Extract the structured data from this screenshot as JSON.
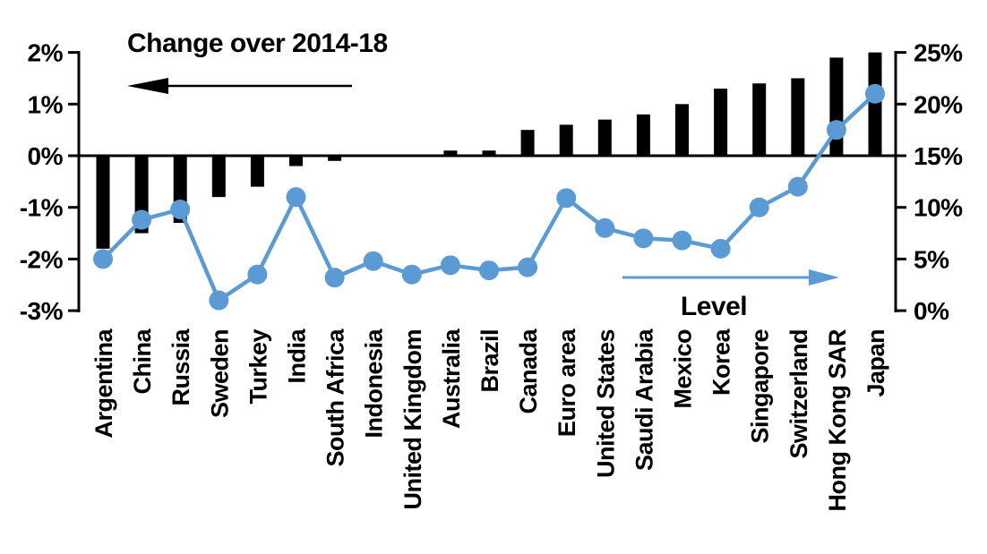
{
  "chart_data": {
    "type": "combo",
    "categories": [
      "Argentina",
      "China",
      "Russia",
      "Sweden",
      "Turkey",
      "India",
      "South Africa",
      "Indonesia",
      "United Kingdom",
      "Australia",
      "Brazil",
      "Canada",
      "Euro area",
      "United States",
      "Saudi Arabia",
      "Mexico",
      "Korea",
      "Singapore",
      "Switzerland",
      "Hong Kong SAR",
      "Japan"
    ],
    "series": [
      {
        "name": "Change over 2014-18",
        "type": "bar",
        "axis": "left",
        "color": "#000000",
        "values": [
          -1.8,
          -1.5,
          -1.3,
          -0.8,
          -0.6,
          -0.2,
          -0.1,
          0.0,
          0.0,
          0.1,
          0.1,
          0.5,
          0.6,
          0.7,
          0.8,
          1.0,
          1.3,
          1.4,
          1.5,
          1.9,
          2.0
        ]
      },
      {
        "name": "Level",
        "type": "line",
        "axis": "right",
        "color": "#5B9BD5",
        "values": [
          5.0,
          8.8,
          9.8,
          1.0,
          3.5,
          11.0,
          3.2,
          4.8,
          3.5,
          4.4,
          3.9,
          4.2,
          10.9,
          8.0,
          7.0,
          6.8,
          6.0,
          10.0,
          12.0,
          17.5,
          21.0
        ]
      }
    ],
    "left_axis": {
      "tick_labels": [
        "2%",
        "1%",
        "0%",
        "-1%",
        "-2%",
        "-3%"
      ],
      "tick_values": [
        2,
        1,
        0,
        -1,
        -2,
        -3
      ],
      "min": -3,
      "max": 2
    },
    "right_axis": {
      "tick_labels": [
        "25%",
        "20%",
        "15%",
        "10%",
        "5%",
        "0%"
      ],
      "tick_values": [
        25,
        20,
        15,
        10,
        5,
        0
      ],
      "min": 0,
      "max": 25
    },
    "annotations": {
      "bar_series_label": "Change over 2014-18",
      "line_series_label": "Level",
      "bar_arrow_direction": "left",
      "line_arrow_direction": "right"
    },
    "layout": {
      "grid": false,
      "zero_line": true,
      "x_labels_rotated_90": true
    }
  },
  "colors": {
    "bar": "#000000",
    "line": "#5B9BD5",
    "axis": "#000000",
    "background": "#ffffff"
  }
}
